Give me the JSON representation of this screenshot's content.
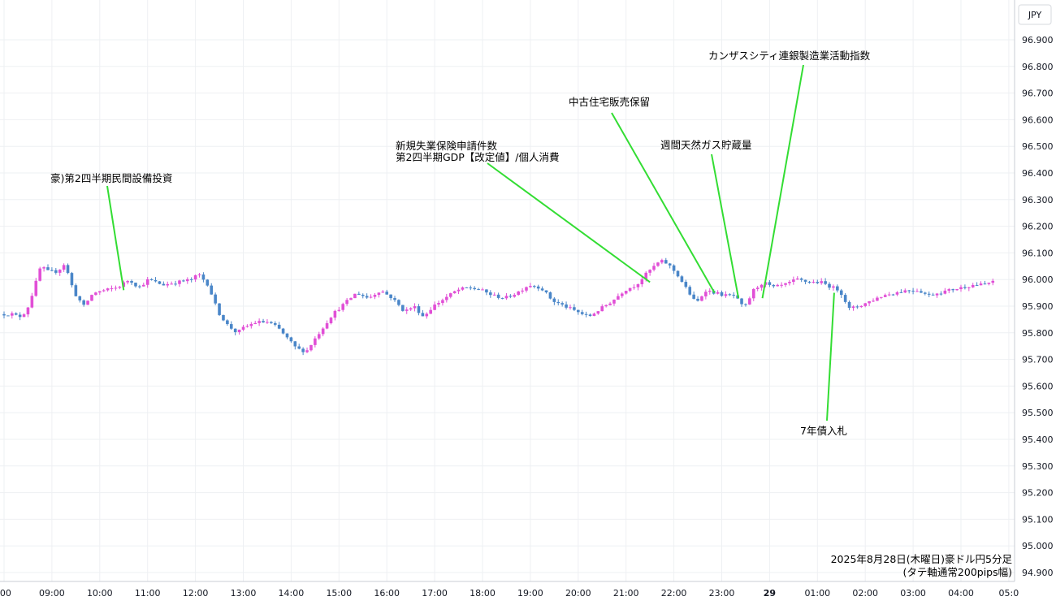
{
  "chart_data": {
    "type": "candlestick",
    "currency": "JPY",
    "caption_line1": "2025年8月28日(木曜日)豪ドル円5分足",
    "caption_line2": "(タテ軸通常200pips幅)",
    "ylim": [
      94.9,
      96.9
    ],
    "y_ticks": [
      "94.900",
      "95.000",
      "95.100",
      "95.200",
      "95.300",
      "95.400",
      "95.500",
      "95.600",
      "95.700",
      "95.800",
      "95.900",
      "96.000",
      "96.100",
      "96.200",
      "96.300",
      "96.400",
      "96.500",
      "96.600",
      "96.700",
      "96.800",
      "96.900"
    ],
    "x_ticks": [
      ":00",
      "09:00",
      "10:00",
      "11:00",
      "12:00",
      "13:00",
      "14:00",
      "15:00",
      "16:00",
      "17:00",
      "18:00",
      "19:00",
      "20:00",
      "21:00",
      "22:00",
      "23:00",
      "29",
      "01:00",
      "02:00",
      "03:00",
      "04:00",
      "05:0"
    ],
    "grid": true,
    "colors": {
      "up": "#e14fd6",
      "down": "#4a86c8",
      "annotation_line": "#33dd33",
      "grid": "#eef0f3"
    },
    "price_path": [
      [
        8.0,
        95.87
      ],
      [
        8.25,
        95.87
      ],
      [
        8.4,
        95.86
      ],
      [
        8.55,
        95.88
      ],
      [
        8.7,
        95.96
      ],
      [
        8.85,
        96.05
      ],
      [
        9.0,
        96.03
      ],
      [
        9.2,
        96.03
      ],
      [
        9.35,
        96.06
      ],
      [
        9.55,
        95.95
      ],
      [
        9.75,
        95.9
      ],
      [
        9.95,
        95.95
      ],
      [
        10.2,
        95.96
      ],
      [
        10.45,
        95.97
      ],
      [
        10.7,
        96.0
      ],
      [
        10.9,
        95.97
      ],
      [
        11.1,
        96.0
      ],
      [
        11.4,
        95.98
      ],
      [
        11.7,
        95.99
      ],
      [
        12.0,
        96.0
      ],
      [
        12.15,
        96.02
      ],
      [
        12.35,
        95.98
      ],
      [
        12.55,
        95.88
      ],
      [
        12.75,
        95.83
      ],
      [
        12.95,
        95.8
      ],
      [
        13.1,
        95.82
      ],
      [
        13.35,
        95.84
      ],
      [
        13.6,
        95.84
      ],
      [
        13.8,
        95.82
      ],
      [
        14.0,
        95.78
      ],
      [
        14.2,
        95.74
      ],
      [
        14.4,
        95.73
      ],
      [
        14.55,
        95.77
      ],
      [
        14.75,
        95.82
      ],
      [
        14.95,
        95.87
      ],
      [
        15.2,
        95.91
      ],
      [
        15.45,
        95.95
      ],
      [
        15.7,
        95.93
      ],
      [
        15.95,
        95.96
      ],
      [
        16.2,
        95.93
      ],
      [
        16.45,
        95.88
      ],
      [
        16.65,
        95.9
      ],
      [
        16.85,
        95.86
      ],
      [
        17.05,
        95.9
      ],
      [
        17.3,
        95.93
      ],
      [
        17.55,
        95.96
      ],
      [
        17.8,
        95.97
      ],
      [
        18.05,
        95.96
      ],
      [
        18.3,
        95.94
      ],
      [
        18.55,
        95.93
      ],
      [
        18.8,
        95.95
      ],
      [
        19.05,
        95.98
      ],
      [
        19.3,
        95.97
      ],
      [
        19.55,
        95.92
      ],
      [
        19.8,
        95.9
      ],
      [
        20.05,
        95.88
      ],
      [
        20.3,
        95.86
      ],
      [
        20.55,
        95.89
      ],
      [
        20.8,
        95.92
      ],
      [
        21.05,
        95.96
      ],
      [
        21.3,
        95.98
      ],
      [
        21.55,
        96.03
      ],
      [
        21.8,
        96.07
      ],
      [
        21.95,
        96.06
      ],
      [
        22.15,
        96.02
      ],
      [
        22.4,
        95.95
      ],
      [
        22.55,
        95.91
      ],
      [
        22.75,
        95.96
      ],
      [
        22.95,
        95.95
      ],
      [
        23.15,
        95.94
      ],
      [
        23.35,
        95.94
      ],
      [
        23.55,
        95.89
      ],
      [
        23.75,
        95.96
      ],
      [
        23.95,
        95.99
      ],
      [
        24.15,
        95.97
      ],
      [
        24.4,
        95.98
      ],
      [
        24.65,
        96.0
      ],
      [
        24.9,
        95.99
      ],
      [
        25.15,
        95.99
      ],
      [
        25.4,
        95.97
      ],
      [
        25.55,
        95.96
      ],
      [
        25.75,
        95.89
      ],
      [
        25.95,
        95.9
      ],
      [
        26.2,
        95.92
      ],
      [
        26.45,
        95.94
      ],
      [
        26.7,
        95.95
      ],
      [
        26.95,
        95.96
      ],
      [
        27.2,
        95.96
      ],
      [
        27.4,
        95.94
      ],
      [
        27.6,
        95.95
      ],
      [
        27.85,
        95.96
      ],
      [
        28.1,
        95.97
      ],
      [
        28.35,
        95.98
      ],
      [
        28.55,
        95.98
      ],
      [
        28.7,
        95.99
      ]
    ],
    "annotations": [
      {
        "text": "豪)第2四半期民間設備投資",
        "x_time": 10.5,
        "y_price": 95.96
      },
      {
        "text": "新規失業保険申請件数",
        "text2": "第2四半期GDP【改定値】/個人消費",
        "x_time": 21.5,
        "y_price": 95.99
      },
      {
        "text": "中古住宅販売保留",
        "x_time": 22.85,
        "y_price": 95.95
      },
      {
        "text": "週間天然ガス貯蔵量",
        "x_time": 23.35,
        "y_price": 95.93
      },
      {
        "text": "カンザスシティ連銀製造業活動指数",
        "x_time": 23.85,
        "y_price": 95.93
      },
      {
        "text": "7年債入札",
        "x_time": 25.35,
        "y_price": 95.95
      }
    ]
  }
}
